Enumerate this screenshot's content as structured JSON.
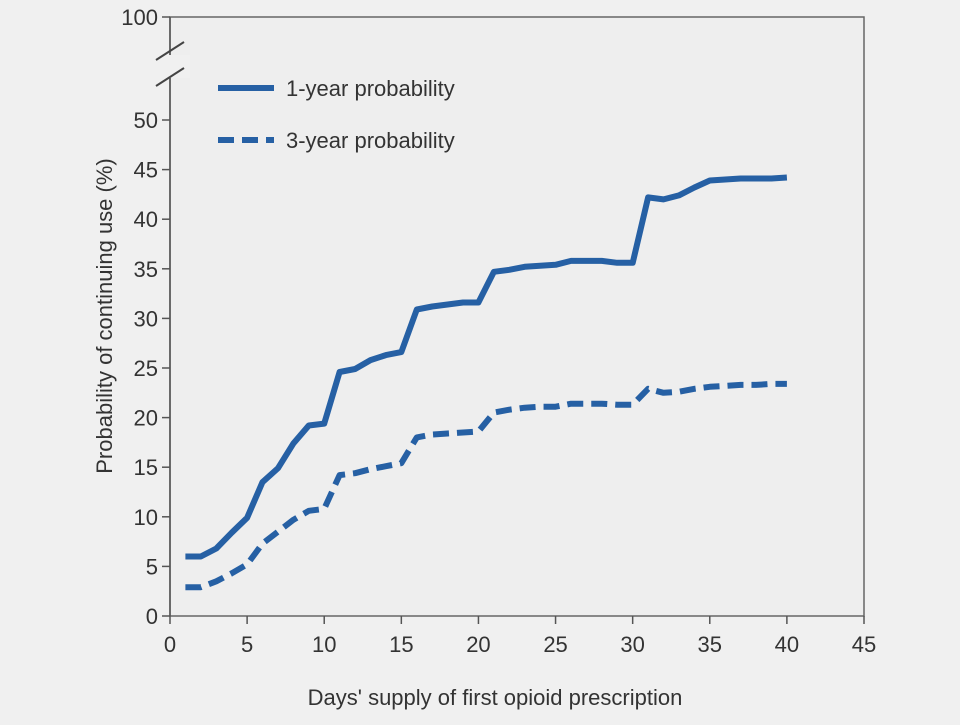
{
  "chart_data": {
    "type": "line",
    "xlabel": "Days' supply of first opioid prescription",
    "ylabel": "Probability of continuing use (%)",
    "xlim": [
      0,
      45
    ],
    "ylim": [
      0,
      50
    ],
    "y_break_top_label": "100",
    "x_ticks": [
      0,
      5,
      10,
      15,
      20,
      25,
      30,
      35,
      40,
      45
    ],
    "y_ticks": [
      0,
      5,
      10,
      15,
      20,
      25,
      30,
      35,
      40,
      45,
      50
    ],
    "legend_position": "top-left",
    "grid": false,
    "colors": {
      "series": "#2660a4",
      "background": "#f0f0f0",
      "plot_bg": "#eeeeee",
      "axis": "#555555"
    },
    "series": [
      {
        "name": "1-year probability",
        "style": "solid",
        "x": [
          1,
          2,
          3,
          4,
          5,
          6,
          7,
          8,
          9,
          10,
          11,
          12,
          13,
          14,
          15,
          16,
          17,
          18,
          19,
          20,
          21,
          22,
          23,
          24,
          25,
          26,
          27,
          28,
          29,
          30,
          31,
          32,
          33,
          34,
          35,
          36,
          37,
          38,
          39,
          40
        ],
        "values": [
          6.0,
          6.0,
          6.8,
          8.4,
          9.9,
          13.5,
          14.9,
          17.4,
          19.2,
          19.4,
          24.6,
          24.9,
          25.8,
          26.3,
          26.6,
          30.9,
          31.2,
          31.4,
          31.6,
          31.6,
          34.7,
          34.9,
          35.2,
          35.3,
          35.4,
          35.8,
          35.8,
          35.8,
          35.6,
          35.6,
          42.2,
          42.0,
          42.4,
          43.2,
          43.9,
          44.0,
          44.1,
          44.1,
          44.1,
          44.2
        ]
      },
      {
        "name": "3-year probability",
        "style": "dashed",
        "x": [
          1,
          2,
          3,
          4,
          5,
          6,
          7,
          8,
          9,
          10,
          11,
          12,
          13,
          14,
          15,
          16,
          17,
          18,
          19,
          20,
          21,
          22,
          23,
          24,
          25,
          26,
          27,
          28,
          29,
          30,
          31,
          32,
          33,
          34,
          35,
          36,
          37,
          38,
          39,
          40
        ],
        "values": [
          2.9,
          2.9,
          3.5,
          4.3,
          5.2,
          7.3,
          8.5,
          9.7,
          10.6,
          10.8,
          14.2,
          14.4,
          14.8,
          15.1,
          15.4,
          18.0,
          18.3,
          18.4,
          18.5,
          18.6,
          20.5,
          20.8,
          21.0,
          21.1,
          21.1,
          21.4,
          21.4,
          21.4,
          21.3,
          21.3,
          22.9,
          22.5,
          22.6,
          22.9,
          23.1,
          23.2,
          23.3,
          23.3,
          23.4,
          23.4
        ]
      }
    ]
  }
}
